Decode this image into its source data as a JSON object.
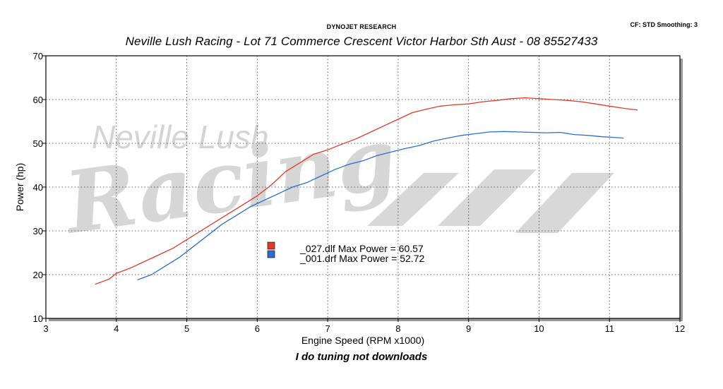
{
  "header": {
    "research": "DYNOJET RESEARCH",
    "cf_smoothing": "CF: STD  Smoothing: 3",
    "company": "Neville Lush Racing  - Lot 71 Commerce Crescent  Victor Harbor Sth Aust  - 08 85527433"
  },
  "watermark": {
    "line1": "Neville Lush",
    "line2": "Racing"
  },
  "footer": "I do tuning not downloads",
  "colors": {
    "series1": "#e03a2a",
    "series2": "#2a6fd0",
    "watermark": "#d0d0d0"
  },
  "chart_data": {
    "type": "line",
    "xlabel": "Engine Speed (RPM x1000)",
    "ylabel": "Power (hp)",
    "xlim": [
      3,
      12
    ],
    "ylim": [
      10,
      70
    ],
    "xticks": [
      3,
      4,
      5,
      6,
      7,
      8,
      9,
      10,
      11,
      12
    ],
    "yticks": [
      10,
      20,
      30,
      40,
      50,
      60,
      70
    ],
    "grid": true,
    "legend_position": "center",
    "series": [
      {
        "name": "_027.dlf Max Power = 60.57",
        "color": "#e03a2a",
        "x": [
          3.7,
          3.9,
          4.0,
          4.2,
          4.4,
          4.6,
          4.8,
          5.0,
          5.2,
          5.4,
          5.6,
          5.8,
          6.0,
          6.2,
          6.4,
          6.6,
          6.8,
          7.0,
          7.2,
          7.4,
          7.6,
          7.8,
          8.0,
          8.2,
          8.4,
          8.6,
          8.8,
          9.0,
          9.2,
          9.4,
          9.6,
          9.8,
          10.0,
          10.2,
          10.4,
          10.6,
          10.8,
          11.0,
          11.2,
          11.4
        ],
        "y": [
          17.8,
          19.0,
          20.3,
          21.5,
          23.0,
          24.5,
          26.0,
          28.0,
          30.0,
          32.0,
          34.0,
          36.0,
          38.0,
          40.5,
          43.5,
          45.5,
          47.5,
          48.5,
          49.8,
          51.0,
          52.5,
          54.0,
          55.5,
          57.0,
          57.8,
          58.5,
          58.8,
          59.0,
          59.5,
          59.8,
          60.2,
          60.4,
          60.2,
          60.0,
          59.8,
          59.5,
          59.0,
          58.5,
          58.0,
          57.6
        ]
      },
      {
        "name": "_001.drf Max Power = 52.72",
        "color": "#2a6fd0",
        "x": [
          4.3,
          4.5,
          4.7,
          4.9,
          5.1,
          5.3,
          5.5,
          5.7,
          5.9,
          6.1,
          6.3,
          6.5,
          6.7,
          6.9,
          7.1,
          7.3,
          7.5,
          7.7,
          7.9,
          8.1,
          8.3,
          8.5,
          8.7,
          8.9,
          9.1,
          9.3,
          9.5,
          9.7,
          9.9,
          10.1,
          10.3,
          10.5,
          10.7,
          10.9,
          11.1,
          11.2
        ],
        "y": [
          18.8,
          20.0,
          22.0,
          24.0,
          26.5,
          29.0,
          31.5,
          33.5,
          35.5,
          37.0,
          38.5,
          40.0,
          41.0,
          42.5,
          44.0,
          45.2,
          46.0,
          47.2,
          48.0,
          48.8,
          49.5,
          50.5,
          51.2,
          51.8,
          52.2,
          52.6,
          52.7,
          52.6,
          52.5,
          52.4,
          52.5,
          52.0,
          51.8,
          51.5,
          51.3,
          51.2
        ]
      }
    ]
  }
}
